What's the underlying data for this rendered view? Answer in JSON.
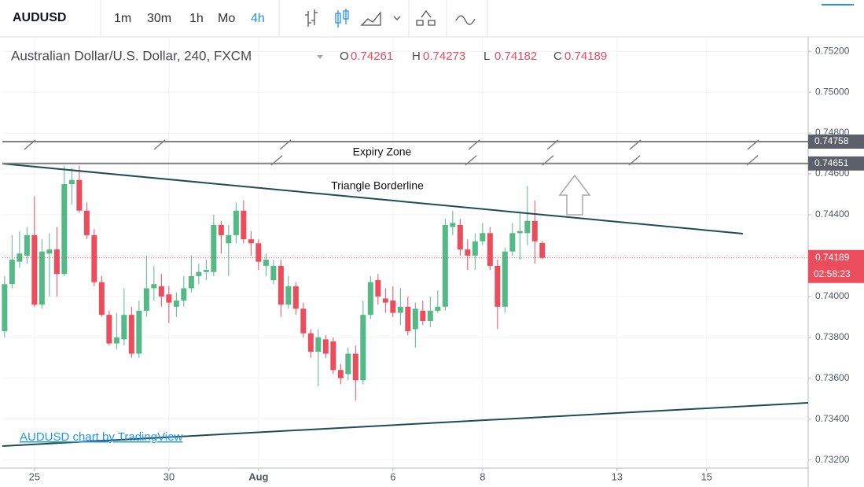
{
  "toolbar": {
    "symbol": "AUDUSD",
    "intervals": [
      {
        "label": "1m"
      },
      {
        "label": "30m"
      },
      {
        "label": "1h"
      },
      {
        "label": "Mo"
      },
      {
        "label": "4h",
        "active": true
      }
    ]
  },
  "chart_data": {
    "type": "candlestick",
    "title": "Australian Dollar/U.S. Dollar, 240, FXCM",
    "header_ohlc": [
      {
        "label": "O",
        "value": 0.74261
      },
      {
        "label": "H",
        "value": 0.74273
      },
      {
        "label": "L",
        "value": 0.74182
      },
      {
        "label": "C",
        "value": 0.74189
      }
    ],
    "up_color": "#53b987",
    "down_color": "#eb4d5c",
    "x": [
      0,
      1,
      2,
      3,
      4,
      5,
      6,
      7,
      8,
      9,
      10,
      11,
      12,
      13,
      14,
      15,
      16,
      17,
      18,
      19,
      20,
      21,
      22,
      23,
      24,
      25,
      26,
      27,
      28,
      29,
      30,
      31,
      32,
      33,
      34,
      35,
      36,
      37,
      38,
      39,
      40,
      41,
      42,
      43,
      44,
      45,
      46,
      47,
      48,
      49,
      50,
      51,
      52,
      53,
      54,
      55,
      56,
      57,
      58,
      59,
      60,
      61,
      62,
      63,
      64,
      65,
      66,
      67,
      68,
      69,
      70,
      71,
      72
    ],
    "open": [
      0.7383,
      0.7406,
      0.7417,
      0.742,
      0.743,
      0.7396,
      0.7421,
      0.7423,
      0.7411,
      0.7455,
      0.7457,
      0.7442,
      0.743,
      0.7407,
      0.7391,
      0.7377,
      0.7379,
      0.7391,
      0.7372,
      0.7393,
      0.7404,
      0.7405,
      0.7401,
      0.7395,
      0.7398,
      0.7404,
      0.741,
      0.7412,
      0.7412,
      0.7435,
      0.7426,
      0.743,
      0.7442,
      0.7428,
      0.7426,
      0.7415,
      0.7408,
      0.7415,
      0.7396,
      0.7405,
      0.7394,
      0.7382,
      0.7373,
      0.7379,
      0.7378,
      0.7364,
      0.7362,
      0.7372,
      0.7359,
      0.7391,
      0.7408,
      0.7399,
      0.7398,
      0.7392,
      0.7395,
      0.7384,
      0.7393,
      0.7388,
      0.7393,
      0.7395,
      0.7434,
      0.7435,
      0.7423,
      0.742,
      0.7427,
      0.7431,
      0.7415,
      0.7395,
      0.7422,
      0.7431,
      0.7431,
      0.7437,
      0.74261
    ],
    "high": [
      0.741,
      0.743,
      0.7432,
      0.7434,
      0.7449,
      0.7428,
      0.7431,
      0.7434,
      0.7464,
      0.7463,
      0.7464,
      0.7446,
      0.7433,
      0.741,
      0.7393,
      0.7392,
      0.7404,
      0.7395,
      0.7398,
      0.742,
      0.7415,
      0.7411,
      0.7405,
      0.7402,
      0.741,
      0.742,
      0.7416,
      0.7418,
      0.744,
      0.7437,
      0.7435,
      0.7446,
      0.7447,
      0.7432,
      0.7428,
      0.7421,
      0.7418,
      0.7418,
      0.741,
      0.7407,
      0.7397,
      0.7384,
      0.7384,
      0.7381,
      0.738,
      0.7367,
      0.7375,
      0.7376,
      0.7398,
      0.741,
      0.7411,
      0.7404,
      0.7405,
      0.7404,
      0.74,
      0.7397,
      0.7398,
      0.74,
      0.7403,
      0.7438,
      0.7442,
      0.7438,
      0.7428,
      0.7431,
      0.7436,
      0.7434,
      0.7418,
      0.7424,
      0.7436,
      0.7441,
      0.7454,
      0.7447,
      0.74273
    ],
    "low": [
      0.738,
      0.7404,
      0.7414,
      0.7416,
      0.7395,
      0.7394,
      0.74,
      0.74,
      0.741,
      0.7445,
      0.7441,
      0.7428,
      0.7405,
      0.739,
      0.7376,
      0.7374,
      0.7376,
      0.737,
      0.737,
      0.739,
      0.7398,
      0.7395,
      0.7387,
      0.739,
      0.7395,
      0.7402,
      0.7406,
      0.7408,
      0.741,
      0.7421,
      0.741,
      0.7426,
      0.7426,
      0.742,
      0.7413,
      0.741,
      0.7406,
      0.739,
      0.7394,
      0.7391,
      0.738,
      0.737,
      0.7356,
      0.737,
      0.7362,
      0.7357,
      0.7359,
      0.7349,
      0.7357,
      0.7389,
      0.7396,
      0.7392,
      0.739,
      0.7386,
      0.7381,
      0.7375,
      0.7386,
      0.7385,
      0.7392,
      0.7393,
      0.743,
      0.742,
      0.7413,
      0.7413,
      0.7425,
      0.7413,
      0.7384,
      0.7392,
      0.742,
      0.7418,
      0.7425,
      0.7416,
      0.74182
    ],
    "close": [
      0.7406,
      0.7418,
      0.7421,
      0.743,
      0.7396,
      0.7422,
      0.7423,
      0.7411,
      0.7455,
      0.7457,
      0.7442,
      0.743,
      0.7407,
      0.7391,
      0.7377,
      0.738,
      0.7391,
      0.7372,
      0.7393,
      0.7404,
      0.7406,
      0.74,
      0.7397,
      0.7398,
      0.7404,
      0.741,
      0.7412,
      0.7413,
      0.7435,
      0.743,
      0.743,
      0.7442,
      0.7428,
      0.7426,
      0.7417,
      0.7418,
      0.7415,
      0.7396,
      0.7405,
      0.7394,
      0.7382,
      0.7373,
      0.738,
      0.7372,
      0.7364,
      0.736,
      0.7372,
      0.7359,
      0.7391,
      0.7407,
      0.74,
      0.7397,
      0.7392,
      0.7395,
      0.7383,
      0.7394,
      0.7388,
      0.7393,
      0.7395,
      0.7435,
      0.7436,
      0.7423,
      0.742,
      0.7427,
      0.7431,
      0.7415,
      0.7395,
      0.7422,
      0.7431,
      0.7432,
      0.7437,
      0.7427,
      0.74189
    ],
    "xlim": [
      -0.3,
      107.6
    ],
    "xticks": [
      {
        "value": 4,
        "label": "25"
      },
      {
        "value": 22,
        "label": "30"
      },
      {
        "value": 34,
        "label": "Aug"
      },
      {
        "value": 52,
        "label": "6"
      },
      {
        "value": 64,
        "label": "8"
      },
      {
        "value": 82,
        "label": "13"
      },
      {
        "value": 94,
        "label": "15"
      }
    ],
    "ylim": [
      0.7316,
      0.7527
    ],
    "yticks": [
      {
        "value": 0.732,
        "label": "0.73200"
      },
      {
        "value": 0.734,
        "label": "0.73400"
      },
      {
        "value": 0.736,
        "label": "0.73600"
      },
      {
        "value": 0.738,
        "label": "0.73800"
      },
      {
        "value": 0.74,
        "label": "0.74000"
      },
      {
        "value": 0.742,
        "label": "0.74200"
      },
      {
        "value": 0.744,
        "label": "0.74400"
      },
      {
        "value": 0.746,
        "label": "0.74600"
      },
      {
        "value": 0.748,
        "label": "0.74800"
      },
      {
        "value": 0.75,
        "label": "0.75000"
      },
      {
        "value": 0.752,
        "label": "0.75200"
      }
    ],
    "grid": true,
    "expiry_zone": {
      "label": "Expiry Zone",
      "high": 0.74758,
      "low": 0.74651
    },
    "trendline_label": "Triangle Borderline",
    "last_price": 0.74189,
    "countdown": "02:58:23",
    "watermark": "AUDUSD chart by TradingView"
  }
}
